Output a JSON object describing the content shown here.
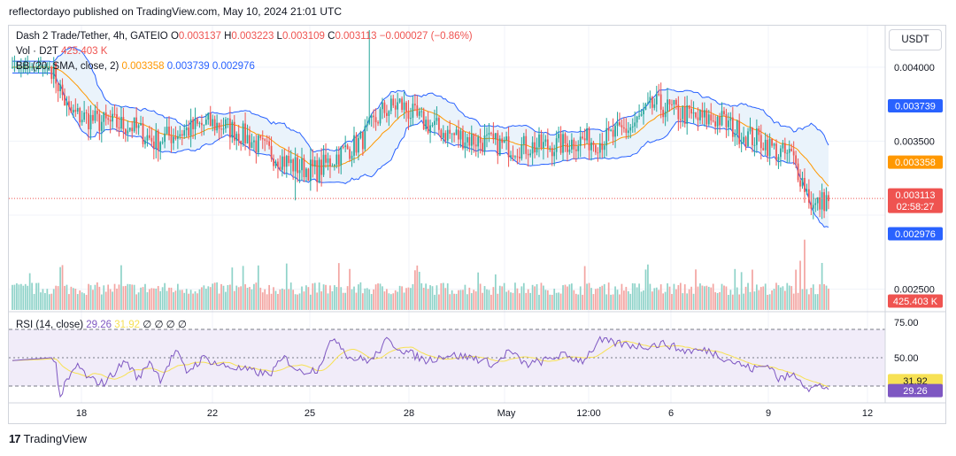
{
  "header": {
    "caption": "reflectordayo published on TradingView.com, May 10, 2024 21:01 UTC"
  },
  "legend": {
    "symbol": "Dash 2 Trade/Tether, 4h, GATEIO",
    "o_label": "O",
    "o_value": "0.003137",
    "h_label": "H",
    "h_value": "0.003223",
    "l_label": "L",
    "l_value": "0.003109",
    "c_label": "C",
    "c_value": "0.003113",
    "change": "−0.000027 (−0.86%)",
    "vol_label": "Vol · D2T",
    "vol_value": "425.403 K",
    "bb_label": "BB (20, SMA, close, 2)",
    "bb_basis": "0.003358",
    "bb_upper": "0.003739",
    "bb_lower": "0.002976",
    "rsi_label": "RSI (14, close)",
    "rsi_value": "29.26",
    "rsi_ma": "31.92",
    "rsi_extra": "∅ ∅ ∅ ∅"
  },
  "currency_button": "USDT",
  "price_scale": {
    "ticks": [
      "0.004000",
      "0.003500",
      "0.002500"
    ],
    "tags": [
      {
        "text": "0.003739",
        "color": "#2962ff",
        "value": 0.003739
      },
      {
        "text": "0.003358",
        "color": "#ff9800",
        "value": 0.003358
      },
      {
        "text": "0.003113",
        "color": "#ef5350",
        "value": 0.003113,
        "extra": "02:58:27"
      },
      {
        "text": "0.002976",
        "color": "#2962ff",
        "value": 0.002976
      },
      {
        "text": "425.403 K",
        "color": "#ef5350",
        "value": 425403
      }
    ]
  },
  "rsi_scale": {
    "ticks": [
      "75.00",
      "50.00",
      "25.00"
    ],
    "tags": [
      {
        "text": "31.92",
        "color": "#f7e154",
        "text_color": "#131722",
        "value": 31.92
      },
      {
        "text": "29.26",
        "color": "#7e57c2",
        "text_color": "#ffffff",
        "value": 29.26
      }
    ]
  },
  "time_axis": [
    "18",
    "22",
    "25",
    "28",
    "May",
    "12:00",
    "6",
    "9",
    "12"
  ],
  "brand": {
    "logo": "17",
    "name": "TradingView"
  },
  "colors": {
    "up": "#26a69a",
    "down": "#ef5350",
    "vol_up": "#8fd3c9",
    "vol_down": "#f3a5a2",
    "bb_basis": "#ff9800",
    "bb_band": "#2962ff",
    "bb_fill": "#eaf3fb",
    "rsi": "#7e57c2",
    "rsi_ma": "#f7e154",
    "rsi_bg": "#f1ecf9"
  },
  "chart_data": {
    "type": "candlestick",
    "title": "Dash 2 Trade/Tether, 4h, GATEIO",
    "ylim": [
      0.00236,
      0.00428
    ],
    "price_series_knots": [
      [
        0,
        0.004
      ],
      [
        18,
        0.004
      ],
      [
        26,
        0.00369
      ],
      [
        40,
        0.00363
      ],
      [
        55,
        0.0036
      ],
      [
        65,
        0.0035
      ],
      [
        75,
        0.00355
      ],
      [
        90,
        0.00362
      ],
      [
        98,
        0.0036
      ],
      [
        105,
        0.00355
      ],
      [
        115,
        0.00345
      ],
      [
        130,
        0.00333
      ],
      [
        140,
        0.0033
      ],
      [
        150,
        0.00341
      ],
      [
        160,
        0.0035
      ],
      [
        170,
        0.0037
      ],
      [
        178,
        0.00375
      ],
      [
        186,
        0.00365
      ],
      [
        200,
        0.00355
      ],
      [
        215,
        0.0035
      ],
      [
        230,
        0.00346
      ],
      [
        250,
        0.00347
      ],
      [
        262,
        0.00351
      ],
      [
        270,
        0.0035
      ],
      [
        285,
        0.0036
      ],
      [
        295,
        0.00375
      ],
      [
        305,
        0.0037
      ],
      [
        315,
        0.00365
      ],
      [
        325,
        0.00365
      ],
      [
        335,
        0.00355
      ],
      [
        345,
        0.0035
      ],
      [
        352,
        0.00342
      ],
      [
        358,
        0.0034
      ],
      [
        364,
        0.0032
      ],
      [
        368,
        0.00305
      ],
      [
        373,
        0.0031
      ],
      [
        375,
        0.00311
      ]
    ],
    "volume_range": [
      0,
      1500000
    ],
    "rsi_ylim": [
      20,
      80
    ],
    "rsi_levels": [
      70,
      50,
      30
    ],
    "rsi_knots": [
      [
        0,
        48
      ],
      [
        18,
        50
      ],
      [
        20,
        45
      ],
      [
        22,
        22
      ],
      [
        24,
        30
      ],
      [
        30,
        45
      ],
      [
        35,
        35
      ],
      [
        42,
        32
      ],
      [
        52,
        48
      ],
      [
        58,
        35
      ],
      [
        63,
        48
      ],
      [
        68,
        35
      ],
      [
        75,
        55
      ],
      [
        80,
        40
      ],
      [
        88,
        50
      ],
      [
        95,
        45
      ],
      [
        105,
        42
      ],
      [
        118,
        38
      ],
      [
        125,
        50
      ],
      [
        132,
        40
      ],
      [
        140,
        42
      ],
      [
        148,
        65
      ],
      [
        155,
        50
      ],
      [
        165,
        48
      ],
      [
        172,
        62
      ],
      [
        180,
        55
      ],
      [
        190,
        48
      ],
      [
        200,
        52
      ],
      [
        212,
        50
      ],
      [
        222,
        45
      ],
      [
        228,
        55
      ],
      [
        236,
        45
      ],
      [
        245,
        48
      ],
      [
        252,
        52
      ],
      [
        262,
        48
      ],
      [
        270,
        62
      ],
      [
        278,
        60
      ],
      [
        290,
        58
      ],
      [
        300,
        60
      ],
      [
        308,
        55
      ],
      [
        320,
        55
      ],
      [
        330,
        48
      ],
      [
        340,
        42
      ],
      [
        348,
        45
      ],
      [
        352,
        35
      ],
      [
        360,
        38
      ],
      [
        366,
        28
      ],
      [
        370,
        30
      ],
      [
        375,
        29
      ]
    ],
    "bars": 376
  }
}
